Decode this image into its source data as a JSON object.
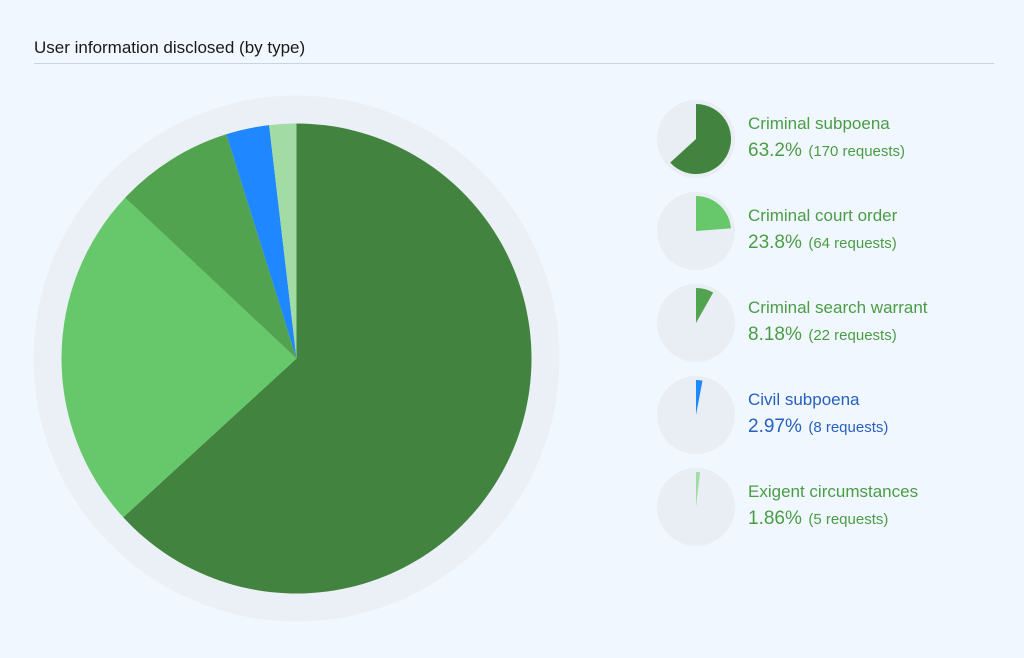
{
  "title": "User information disclosed (by type)",
  "chart_data": {
    "type": "pie",
    "title": "User information disclosed (by type)",
    "slices": [
      {
        "name": "Criminal subpoena",
        "percent": 63.2,
        "pct_label": "63.2%",
        "count_label": "(170 requests)",
        "color": "#42843f",
        "text_color": "#4a9d46"
      },
      {
        "name": "Criminal court order",
        "percent": 23.8,
        "pct_label": "23.8%",
        "count_label": "(64 requests)",
        "color": "#66c86a",
        "text_color": "#4a9d46"
      },
      {
        "name": "Criminal search warrant",
        "percent": 8.18,
        "pct_label": "8.18%",
        "count_label": "(22 requests)",
        "color": "#51a34f",
        "text_color": "#4a9d46"
      },
      {
        "name": "Civil subpoena",
        "percent": 2.97,
        "pct_label": "2.97%",
        "count_label": "(8 requests)",
        "color": "#1f87ff",
        "text_color": "#2760bf"
      },
      {
        "name": "Exigent circumstances",
        "percent": 1.86,
        "pct_label": "1.86%",
        "count_label": "(5 requests)",
        "color": "#a2dba4",
        "text_color": "#4a9d46"
      }
    ],
    "legend_position": "right"
  }
}
